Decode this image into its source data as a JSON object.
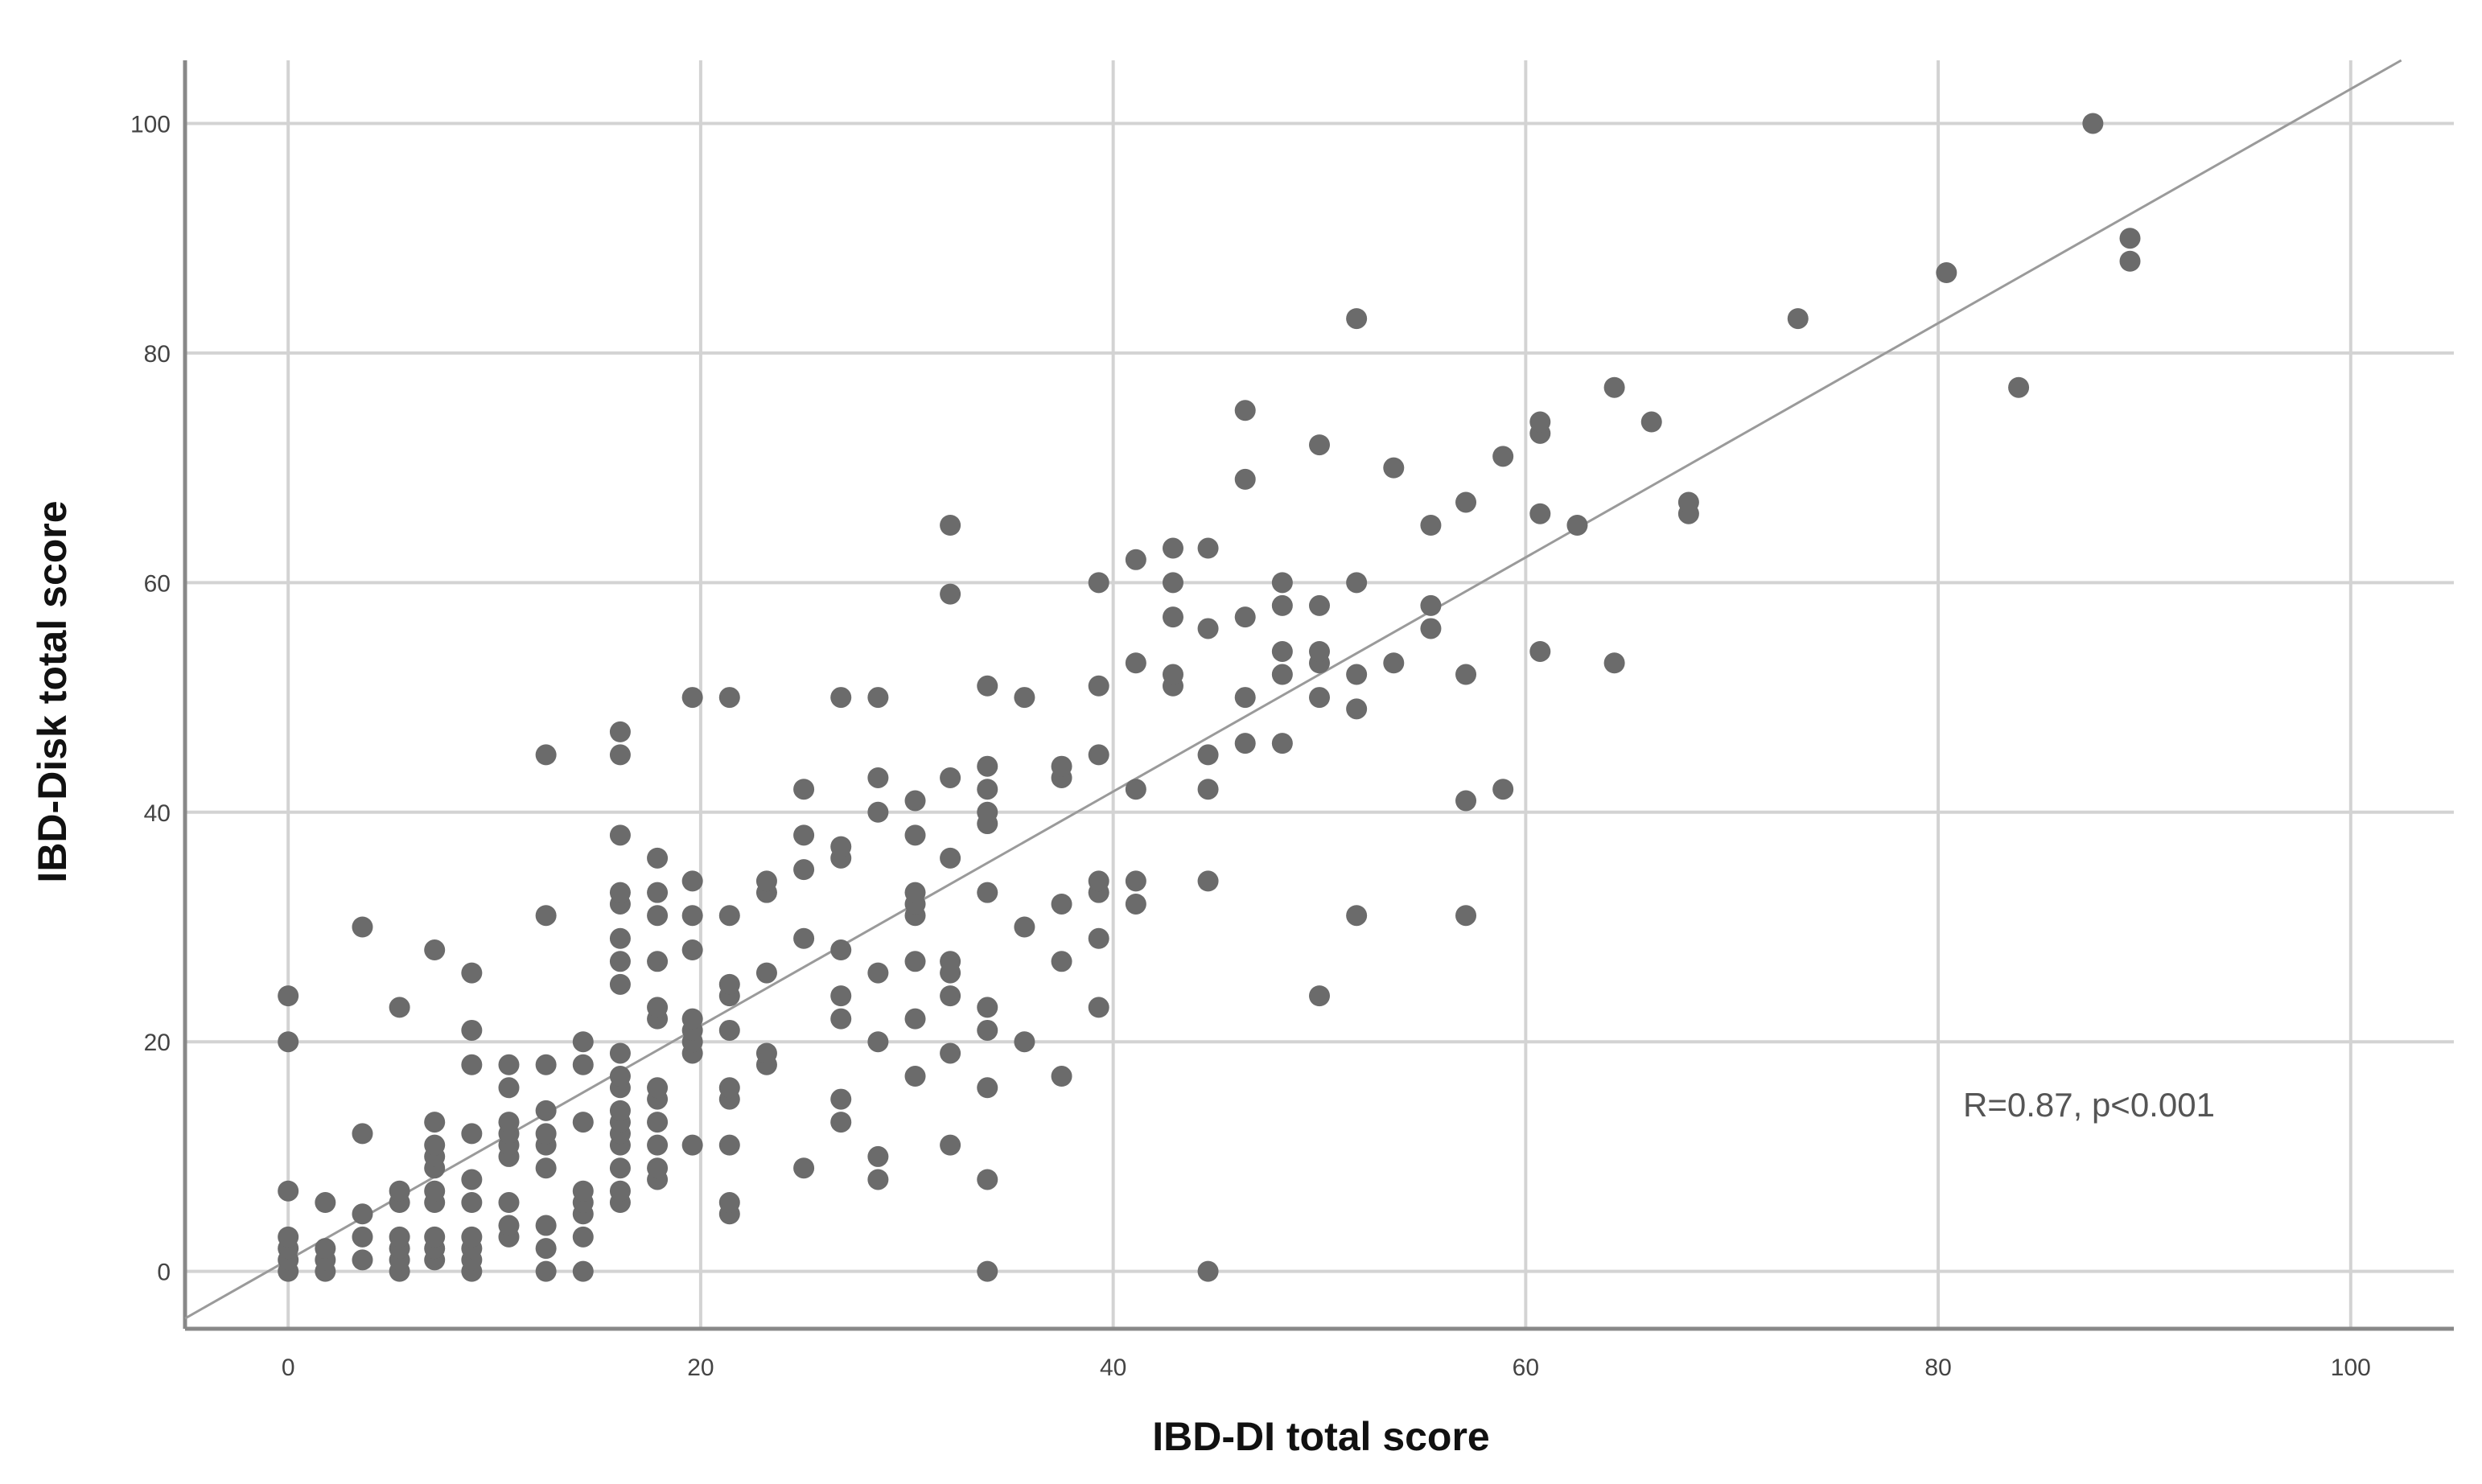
{
  "chart_data": {
    "type": "scatter",
    "title": "",
    "xlabel": "IBD-DI total score",
    "ylabel": "IBD-Disk total score",
    "xlim": [
      -5,
      105
    ],
    "ylim": [
      -5,
      105.5
    ],
    "x_ticks": [
      "0",
      "20",
      "40",
      "60",
      "80",
      "100"
    ],
    "y_ticks": [
      "0",
      "20",
      "40",
      "60",
      "80",
      "100"
    ],
    "grid": true,
    "annotation": "R=0.87, p<0.001",
    "fit_line": {
      "slope": 1.02,
      "intercept": 1.0
    },
    "colors": {
      "points": "#6b6b6b",
      "grid": "#d3d3d3",
      "fit_line": "#9a9a9a",
      "axis": "#888888"
    },
    "points": [
      [
        0,
        0
      ],
      [
        0,
        1
      ],
      [
        0,
        2
      ],
      [
        0,
        3
      ],
      [
        0,
        7
      ],
      [
        0,
        20
      ],
      [
        0,
        24
      ],
      [
        1.8,
        0
      ],
      [
        1.8,
        1
      ],
      [
        1.8,
        2
      ],
      [
        1.8,
        6
      ],
      [
        3.6,
        1
      ],
      [
        3.6,
        3
      ],
      [
        3.6,
        5
      ],
      [
        3.6,
        12
      ],
      [
        3.6,
        30
      ],
      [
        5.4,
        0
      ],
      [
        5.4,
        1
      ],
      [
        5.4,
        2
      ],
      [
        5.4,
        3
      ],
      [
        5.4,
        6
      ],
      [
        5.4,
        7
      ],
      [
        5.4,
        23
      ],
      [
        7.1,
        1
      ],
      [
        7.1,
        2
      ],
      [
        7.1,
        3
      ],
      [
        7.1,
        6
      ],
      [
        7.1,
        7
      ],
      [
        7.1,
        9
      ],
      [
        7.1,
        10
      ],
      [
        7.1,
        11
      ],
      [
        7.1,
        13
      ],
      [
        7.1,
        28
      ],
      [
        8.9,
        0
      ],
      [
        8.9,
        1
      ],
      [
        8.9,
        2
      ],
      [
        8.9,
        3
      ],
      [
        8.9,
        6
      ],
      [
        8.9,
        8
      ],
      [
        8.9,
        12
      ],
      [
        8.9,
        18
      ],
      [
        8.9,
        21
      ],
      [
        8.9,
        26
      ],
      [
        10.7,
        3
      ],
      [
        10.7,
        4
      ],
      [
        10.7,
        6
      ],
      [
        10.7,
        10
      ],
      [
        10.7,
        11
      ],
      [
        10.7,
        12
      ],
      [
        10.7,
        13
      ],
      [
        10.7,
        16
      ],
      [
        10.7,
        18
      ],
      [
        12.5,
        0
      ],
      [
        12.5,
        2
      ],
      [
        12.5,
        4
      ],
      [
        12.5,
        9
      ],
      [
        12.5,
        11
      ],
      [
        12.5,
        12
      ],
      [
        12.5,
        14
      ],
      [
        12.5,
        18
      ],
      [
        12.5,
        31
      ],
      [
        12.5,
        45
      ],
      [
        14.3,
        0
      ],
      [
        14.3,
        3
      ],
      [
        14.3,
        5
      ],
      [
        14.3,
        6
      ],
      [
        14.3,
        7
      ],
      [
        14.3,
        13
      ],
      [
        14.3,
        18
      ],
      [
        14.3,
        20
      ],
      [
        16.1,
        6
      ],
      [
        16.1,
        7
      ],
      [
        16.1,
        9
      ],
      [
        16.1,
        11
      ],
      [
        16.1,
        12
      ],
      [
        16.1,
        13
      ],
      [
        16.1,
        14
      ],
      [
        16.1,
        16
      ],
      [
        16.1,
        17
      ],
      [
        16.1,
        19
      ],
      [
        16.1,
        25
      ],
      [
        16.1,
        27
      ],
      [
        16.1,
        29
      ],
      [
        16.1,
        32
      ],
      [
        16.1,
        33
      ],
      [
        16.1,
        38
      ],
      [
        16.1,
        45
      ],
      [
        16.1,
        47
      ],
      [
        17.9,
        8
      ],
      [
        17.9,
        9
      ],
      [
        17.9,
        11
      ],
      [
        17.9,
        13
      ],
      [
        17.9,
        15
      ],
      [
        17.9,
        16
      ],
      [
        17.9,
        22
      ],
      [
        17.9,
        23
      ],
      [
        17.9,
        27
      ],
      [
        17.9,
        31
      ],
      [
        17.9,
        33
      ],
      [
        17.9,
        36
      ],
      [
        19.6,
        11
      ],
      [
        19.6,
        19
      ],
      [
        19.6,
        20
      ],
      [
        19.6,
        21
      ],
      [
        19.6,
        22
      ],
      [
        19.6,
        28
      ],
      [
        19.6,
        31
      ],
      [
        19.6,
        34
      ],
      [
        19.6,
        50
      ],
      [
        21.4,
        5
      ],
      [
        21.4,
        6
      ],
      [
        21.4,
        11
      ],
      [
        21.4,
        15
      ],
      [
        21.4,
        16
      ],
      [
        21.4,
        21
      ],
      [
        21.4,
        24
      ],
      [
        21.4,
        25
      ],
      [
        21.4,
        31
      ],
      [
        21.4,
        50
      ],
      [
        23.2,
        18
      ],
      [
        23.2,
        19
      ],
      [
        23.2,
        26
      ],
      [
        23.2,
        33
      ],
      [
        23.2,
        34
      ],
      [
        25,
        9
      ],
      [
        25,
        29
      ],
      [
        25,
        35
      ],
      [
        25,
        38
      ],
      [
        25,
        42
      ],
      [
        26.8,
        13
      ],
      [
        26.8,
        15
      ],
      [
        26.8,
        22
      ],
      [
        26.8,
        24
      ],
      [
        26.8,
        28
      ],
      [
        26.8,
        36
      ],
      [
        26.8,
        37
      ],
      [
        26.8,
        50
      ],
      [
        28.6,
        8
      ],
      [
        28.6,
        10
      ],
      [
        28.6,
        20
      ],
      [
        28.6,
        26
      ],
      [
        28.6,
        40
      ],
      [
        28.6,
        43
      ],
      [
        28.6,
        50
      ],
      [
        30.4,
        17
      ],
      [
        30.4,
        22
      ],
      [
        30.4,
        27
      ],
      [
        30.4,
        31
      ],
      [
        30.4,
        32
      ],
      [
        30.4,
        33
      ],
      [
        30.4,
        38
      ],
      [
        30.4,
        41
      ],
      [
        32.1,
        11
      ],
      [
        32.1,
        19
      ],
      [
        32.1,
        24
      ],
      [
        32.1,
        26
      ],
      [
        32.1,
        27
      ],
      [
        32.1,
        36
      ],
      [
        32.1,
        43
      ],
      [
        32.1,
        59
      ],
      [
        32.1,
        65
      ],
      [
        33.9,
        0
      ],
      [
        33.9,
        8
      ],
      [
        33.9,
        16
      ],
      [
        33.9,
        21
      ],
      [
        33.9,
        23
      ],
      [
        33.9,
        33
      ],
      [
        33.9,
        39
      ],
      [
        33.9,
        40
      ],
      [
        33.9,
        42
      ],
      [
        33.9,
        44
      ],
      [
        33.9,
        51
      ],
      [
        35.7,
        20
      ],
      [
        35.7,
        30
      ],
      [
        35.7,
        50
      ],
      [
        37.5,
        17
      ],
      [
        37.5,
        27
      ],
      [
        37.5,
        32
      ],
      [
        37.5,
        43
      ],
      [
        37.5,
        44
      ],
      [
        39.3,
        23
      ],
      [
        39.3,
        29
      ],
      [
        39.3,
        33
      ],
      [
        39.3,
        34
      ],
      [
        39.3,
        45
      ],
      [
        39.3,
        51
      ],
      [
        39.3,
        60
      ],
      [
        41.1,
        32
      ],
      [
        41.1,
        34
      ],
      [
        41.1,
        42
      ],
      [
        41.1,
        53
      ],
      [
        41.1,
        62
      ],
      [
        42.9,
        51
      ],
      [
        42.9,
        52
      ],
      [
        42.9,
        57
      ],
      [
        42.9,
        60
      ],
      [
        42.9,
        63
      ],
      [
        44.6,
        0
      ],
      [
        44.6,
        34
      ],
      [
        44.6,
        42
      ],
      [
        44.6,
        45
      ],
      [
        44.6,
        56
      ],
      [
        44.6,
        63
      ],
      [
        46.4,
        46
      ],
      [
        46.4,
        50
      ],
      [
        46.4,
        57
      ],
      [
        46.4,
        69
      ],
      [
        46.4,
        75
      ],
      [
        48.2,
        46
      ],
      [
        48.2,
        52
      ],
      [
        48.2,
        54
      ],
      [
        48.2,
        58
      ],
      [
        48.2,
        60
      ],
      [
        50,
        24
      ],
      [
        50,
        50
      ],
      [
        50,
        53
      ],
      [
        50,
        54
      ],
      [
        50,
        58
      ],
      [
        50,
        72
      ],
      [
        51.8,
        31
      ],
      [
        51.8,
        49
      ],
      [
        51.8,
        52
      ],
      [
        51.8,
        60
      ],
      [
        51.8,
        83
      ],
      [
        53.6,
        53
      ],
      [
        53.6,
        70
      ],
      [
        55.4,
        56
      ],
      [
        55.4,
        58
      ],
      [
        55.4,
        65
      ],
      [
        57.1,
        31
      ],
      [
        57.1,
        41
      ],
      [
        57.1,
        52
      ],
      [
        57.1,
        67
      ],
      [
        58.9,
        42
      ],
      [
        58.9,
        71
      ],
      [
        60.7,
        54
      ],
      [
        60.7,
        66
      ],
      [
        60.7,
        73
      ],
      [
        60.7,
        74
      ],
      [
        62.5,
        65
      ],
      [
        64.3,
        53
      ],
      [
        64.3,
        77
      ],
      [
        66.1,
        74
      ],
      [
        67.9,
        66
      ],
      [
        67.9,
        67
      ],
      [
        73.2,
        83
      ],
      [
        80.4,
        87
      ],
      [
        83.9,
        77
      ],
      [
        87.5,
        100
      ],
      [
        89.3,
        88
      ],
      [
        89.3,
        90
      ]
    ]
  }
}
